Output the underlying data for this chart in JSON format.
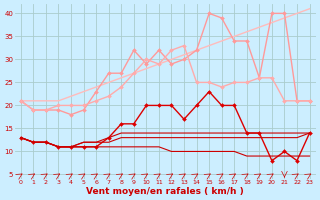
{
  "x": [
    0,
    1,
    2,
    3,
    4,
    5,
    6,
    7,
    8,
    9,
    10,
    11,
    12,
    13,
    14,
    15,
    16,
    17,
    18,
    19,
    20,
    21,
    22,
    23
  ],
  "series": [
    {
      "name": "light_pink_diagonal",
      "y": [
        21,
        21,
        21,
        21,
        22,
        23,
        24,
        25,
        26,
        27,
        28,
        29,
        30,
        31,
        32,
        33,
        34,
        35,
        36,
        37,
        38,
        39,
        40,
        41
      ],
      "color": "#ffbbbb",
      "lw": 1.0,
      "marker": null,
      "ms": 0
    },
    {
      "name": "medium_pink_wavy",
      "y": [
        21,
        19,
        19,
        19,
        18,
        19,
        23,
        27,
        27,
        32,
        29,
        32,
        29,
        30,
        32,
        40,
        39,
        34,
        34,
        26,
        40,
        40,
        21,
        21
      ],
      "color": "#ff9999",
      "lw": 1.0,
      "marker": "D",
      "ms": 2.0
    },
    {
      "name": "pink_rising",
      "y": [
        21,
        19,
        19,
        20,
        20,
        20,
        21,
        22,
        24,
        27,
        30,
        29,
        32,
        33,
        25,
        25,
        24,
        25,
        25,
        26,
        26,
        21,
        21,
        21
      ],
      "color": "#ffaaaa",
      "lw": 1.0,
      "marker": "D",
      "ms": 2.0
    },
    {
      "name": "dark_red_with_markers",
      "y": [
        13,
        12,
        12,
        11,
        11,
        11,
        11,
        13,
        16,
        16,
        20,
        20,
        20,
        17,
        20,
        23,
        20,
        20,
        14,
        14,
        8,
        10,
        8,
        14
      ],
      "color": "#dd0000",
      "lw": 1.0,
      "marker": "D",
      "ms": 2.0
    },
    {
      "name": "flat_red_1",
      "y": [
        13,
        12,
        12,
        11,
        11,
        12,
        12,
        13,
        14,
        14,
        14,
        14,
        14,
        14,
        14,
        14,
        14,
        14,
        14,
        14,
        14,
        14,
        14,
        14
      ],
      "color": "#cc0000",
      "lw": 0.8,
      "marker": null,
      "ms": 0
    },
    {
      "name": "flat_red_2",
      "y": [
        13,
        12,
        12,
        11,
        11,
        12,
        12,
        12,
        13,
        13,
        13,
        13,
        13,
        13,
        13,
        13,
        13,
        13,
        13,
        13,
        13,
        13,
        13,
        14
      ],
      "color": "#cc0000",
      "lw": 0.8,
      "marker": null,
      "ms": 0
    },
    {
      "name": "flat_red_3_low",
      "y": [
        13,
        12,
        12,
        11,
        11,
        11,
        11,
        11,
        11,
        11,
        11,
        11,
        10,
        10,
        10,
        10,
        10,
        10,
        9,
        9,
        9,
        9,
        9,
        9
      ],
      "color": "#cc0000",
      "lw": 0.8,
      "marker": null,
      "ms": 0
    }
  ],
  "xlabel": "Vent moyen/en rafales ( km/h )",
  "ylabel_ticks": [
    5,
    10,
    15,
    20,
    25,
    30,
    35,
    40
  ],
  "xlim": [
    -0.5,
    23.5
  ],
  "ylim": [
    4,
    42
  ],
  "bg_color": "#cceeff",
  "grid_color": "#aacccc",
  "xlabel_color": "#cc0000",
  "tick_color": "#cc0000",
  "figsize": [
    3.2,
    2.0
  ],
  "dpi": 100
}
